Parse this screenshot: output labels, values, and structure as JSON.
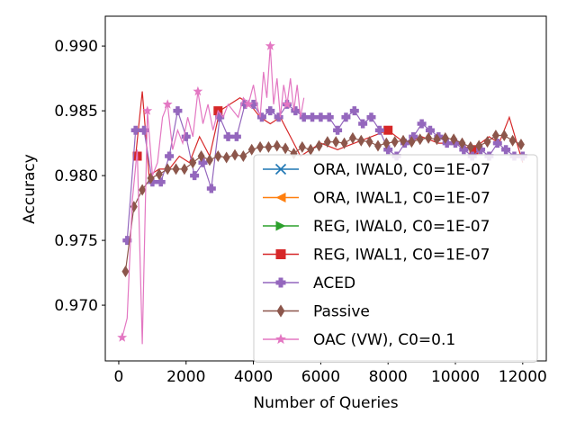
{
  "chart_data": {
    "type": "line",
    "title": "",
    "xlabel": "Number of Queries",
    "ylabel": "Accuracy",
    "xlim": [
      -400,
      12700
    ],
    "ylim": [
      0.9657,
      0.9923
    ],
    "xticks": [
      0,
      2000,
      4000,
      6000,
      8000,
      10000,
      12000
    ],
    "xtick_labels": [
      "0",
      "2000",
      "4000",
      "6000",
      "8000",
      "10000",
      "12000"
    ],
    "yticks": [
      0.97,
      0.975,
      0.98,
      0.985,
      0.99
    ],
    "ytick_labels": [
      "0.970",
      "0.975",
      "0.980",
      "0.985",
      "0.990"
    ],
    "grid": false,
    "legend_position": "lower-right",
    "series": [
      {
        "name": "ORA, IWAL0, C0=1E-07",
        "color": "#1f77b4",
        "marker": "x",
        "x": [],
        "y": []
      },
      {
        "name": "ORA, IWAL1, C0=1E-07",
        "color": "#ff7f0e",
        "marker": "triangle-left",
        "x": [],
        "y": []
      },
      {
        "name": "REG, IWAL0, C0=1E-07",
        "color": "#2ca02c",
        "marker": "triangle-right",
        "x": [],
        "y": []
      },
      {
        "name": "REG, IWAL1, C0=1E-07",
        "color": "#d62728",
        "marker": "square",
        "x": [
          500,
          700,
          900,
          1200,
          1500,
          1800,
          2100,
          2400,
          2700,
          3000,
          3300,
          3600,
          3900,
          4200,
          4500,
          4800,
          5100,
          5400,
          5700,
          6000,
          6500,
          7000,
          7500,
          8000,
          8500,
          9000,
          9500,
          10000,
          10500,
          11000,
          11300,
          11600,
          12000
        ],
        "y": [
          0.9815,
          0.9865,
          0.98,
          0.9805,
          0.9805,
          0.9815,
          0.981,
          0.983,
          0.9815,
          0.985,
          0.9855,
          0.986,
          0.9855,
          0.9845,
          0.984,
          0.9845,
          0.983,
          0.9815,
          0.982,
          0.9825,
          0.982,
          0.9825,
          0.983,
          0.9835,
          0.9825,
          0.983,
          0.9825,
          0.9825,
          0.982,
          0.983,
          0.9825,
          0.9845,
          0.981
        ],
        "marker_x": [
          550,
          2950,
          8000,
          10550
        ],
        "marker_y": [
          0.9815,
          0.985,
          0.9835,
          0.982
        ]
      },
      {
        "name": "ACED",
        "color": "#9467bd",
        "marker": "plus",
        "x": [
          250,
          500,
          750,
          1000,
          1250,
          1500,
          1750,
          2000,
          2250,
          2500,
          2750,
          3000,
          3250,
          3500,
          3750,
          4000,
          4250,
          4500,
          4750,
          5000,
          5250,
          5500,
          5750,
          6000,
          6250,
          6500,
          6750,
          7000,
          7250,
          7500,
          7750,
          8000,
          8250,
          8500,
          8750,
          9000,
          9250,
          9500,
          9750,
          10000,
          10250,
          10500,
          10750,
          11000,
          11250,
          11500,
          11750,
          12000
        ],
        "y": [
          0.975,
          0.9835,
          0.9835,
          0.9795,
          0.9795,
          0.9815,
          0.985,
          0.983,
          0.98,
          0.981,
          0.979,
          0.9845,
          0.983,
          0.983,
          0.9855,
          0.9855,
          0.9845,
          0.985,
          0.9845,
          0.9855,
          0.985,
          0.9845,
          0.9845,
          0.9845,
          0.9845,
          0.9835,
          0.9845,
          0.985,
          0.984,
          0.9845,
          0.9835,
          0.982,
          0.9815,
          0.9825,
          0.983,
          0.984,
          0.9835,
          0.983,
          0.9825,
          0.9825,
          0.982,
          0.9815,
          0.982,
          0.9815,
          0.9825,
          0.982,
          0.9815,
          0.9815
        ]
      },
      {
        "name": "Passive",
        "color": "#8c564b",
        "marker": "diamond",
        "x": [
          200,
          450,
          700,
          950,
          1200,
          1450,
          1700,
          1950,
          2200,
          2450,
          2700,
          2950,
          3200,
          3450,
          3700,
          3950,
          4200,
          4450,
          4700,
          4950,
          5200,
          5450,
          5700,
          5950,
          6200,
          6450,
          6700,
          6950,
          7200,
          7450,
          7700,
          7950,
          8200,
          8450,
          8700,
          8950,
          9200,
          9450,
          9700,
          9950,
          10200,
          10450,
          10700,
          10950,
          11200,
          11450,
          11700,
          11950
        ],
        "y": [
          0.9726,
          0.9776,
          0.9789,
          0.9798,
          0.9801,
          0.9805,
          0.9805,
          0.9805,
          0.981,
          0.9815,
          0.9812,
          0.9815,
          0.9814,
          0.9816,
          0.9815,
          0.982,
          0.9822,
          0.9822,
          0.9823,
          0.9821,
          0.9817,
          0.9822,
          0.982,
          0.9823,
          0.9826,
          0.9826,
          0.9825,
          0.9829,
          0.9827,
          0.9826,
          0.9823,
          0.9825,
          0.9826,
          0.9827,
          0.9826,
          0.9828,
          0.9829,
          0.9828,
          0.9829,
          0.9828,
          0.9825,
          0.9822,
          0.9823,
          0.9826,
          0.9831,
          0.9831,
          0.9827,
          0.9824
        ]
      },
      {
        "name": "OAC (VW), C0=0.1",
        "color": "#e377c2",
        "marker": "star",
        "x": [
          100,
          250,
          400,
          550,
          700,
          850,
          1000,
          1150,
          1300,
          1450,
          1600,
          1750,
          1900,
          2050,
          2200,
          2350,
          2500,
          2650,
          2800,
          2950,
          3100,
          3250,
          3400,
          3550,
          3700,
          3850,
          4000,
          4100,
          4200,
          4300,
          4400,
          4500,
          4600,
          4700,
          4800,
          4900,
          5000,
          5100,
          5200,
          5300,
          5400,
          5500
        ],
        "y": [
          0.9675,
          0.969,
          0.978,
          0.982,
          0.967,
          0.985,
          0.98,
          0.981,
          0.9845,
          0.9855,
          0.982,
          0.9835,
          0.9825,
          0.9845,
          0.983,
          0.9865,
          0.984,
          0.9855,
          0.9835,
          0.985,
          0.9845,
          0.9855,
          0.985,
          0.9845,
          0.986,
          0.9855,
          0.987,
          0.9855,
          0.9845,
          0.988,
          0.986,
          0.99,
          0.9855,
          0.9875,
          0.9845,
          0.987,
          0.9855,
          0.9875,
          0.985,
          0.987,
          0.9845,
          0.986
        ],
        "marker_x": [
          100,
          850,
          1450,
          2350,
          3850,
          4500,
          5000
        ],
        "marker_y": [
          0.9675,
          0.985,
          0.9855,
          0.9865,
          0.9855,
          0.99,
          0.9855
        ]
      }
    ]
  }
}
